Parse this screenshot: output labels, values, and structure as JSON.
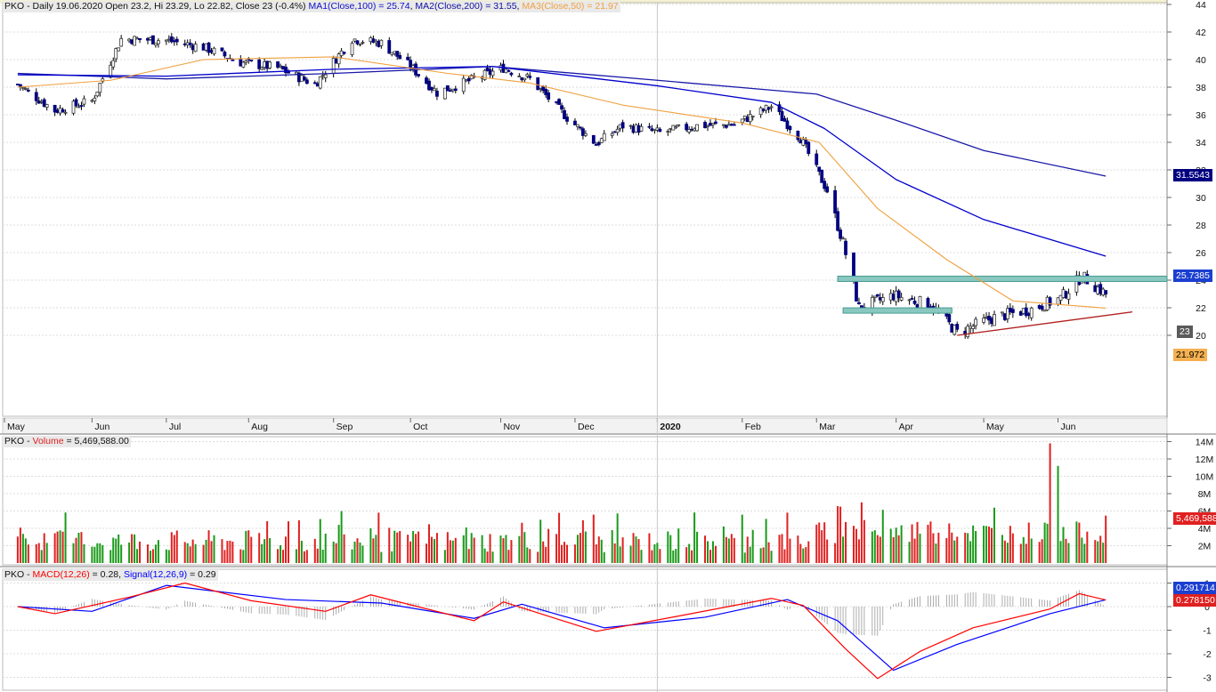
{
  "price_panel": {
    "header": {
      "symbol": "PKO",
      "info": " - Daily 19.06.2020 Open 23.2, Hi 23.29, Lo 22.82, Close 23 (-0.4%) ",
      "ma1": "MA1(Close,100) = 25.74",
      "sep1": ", ",
      "ma2": "MA2(Close,200) = 31.55",
      "sep2": ", ",
      "ma3": "MA3(Close,50) = 21.97"
    },
    "y_ticks": [
      "44",
      "42",
      "40",
      "38",
      "36",
      "34",
      "32",
      "30",
      "28",
      "26",
      "24",
      "22",
      "20"
    ],
    "labels": {
      "ma2": "31.5543",
      "ma1": "25.7385",
      "last": "23",
      "ma3": "21.972"
    }
  },
  "volume_panel": {
    "header": {
      "symbol": "PKO",
      "sep": " - ",
      "label": "Volume",
      "value": " = 5,469,588.00"
    },
    "y_ticks": [
      "14M",
      "12M",
      "10M",
      "8M",
      "6M",
      "4M",
      "2M"
    ],
    "last_label": "5,469,588"
  },
  "macd_panel": {
    "header": {
      "symbol": "PKO",
      "sep": " - ",
      "macd": "MACD(12,26)",
      "macd_val": " = 0.28, ",
      "signal": "Signal(12,26,9)",
      "signal_val": " = 0.29"
    },
    "y_ticks": [
      "1",
      "0",
      "-1",
      "-2",
      "-3"
    ],
    "labels": {
      "signal": "0.291714",
      "macd": "0.278150"
    }
  },
  "x_axis": {
    "ticks": [
      "May",
      "Jun",
      "Jul",
      "Aug",
      "Sep",
      "Oct",
      "Nov",
      "Dec",
      "2020",
      "Feb",
      "Mar",
      "Apr",
      "May",
      "Jun"
    ]
  },
  "colors": {
    "ma100": "#0000cc",
    "ma200": "#1a1aa8",
    "ma50": "#f0a040",
    "up": "#1a9a1a",
    "down": "#e02020",
    "macd": "#ff0000",
    "signal": "#0000ff",
    "support": "#88c8c0",
    "trend": "#b02020"
  },
  "chart_data": [
    {
      "type": "candlestick",
      "title": "PKO - Daily",
      "ylim": [
        19,
        44.5
      ],
      "series": [
        {
          "name": "MA1(Close,100)",
          "x": [
            "2019-05-06",
            "2019-07-01",
            "2019-09-02",
            "2019-11-01",
            "2020-01-02",
            "2020-02-14",
            "2020-03-05",
            "2020-04-01",
            "2020-05-04",
            "2020-06-19"
          ],
          "values": [
            38.9,
            38.8,
            39.3,
            39.5,
            38.1,
            36.9,
            35.0,
            31.3,
            28.4,
            25.74
          ]
        },
        {
          "name": "MA2(Close,200)",
          "x": [
            "2019-05-06",
            "2019-07-01",
            "2019-09-02",
            "2019-11-01",
            "2020-01-02",
            "2020-03-02",
            "2020-04-01",
            "2020-05-04",
            "2020-06-19"
          ],
          "values": [
            39.0,
            38.6,
            39.0,
            39.5,
            38.5,
            37.5,
            35.6,
            33.4,
            31.55
          ]
        },
        {
          "name": "MA3(Close,50)",
          "x": [
            "2019-05-06",
            "2019-06-10",
            "2019-07-15",
            "2019-09-02",
            "2019-10-15",
            "2019-11-15",
            "2019-12-20",
            "2020-02-03",
            "2020-03-03",
            "2020-03-25",
            "2020-04-20",
            "2020-05-15",
            "2020-06-19"
          ],
          "values": [
            38.0,
            38.5,
            40.0,
            40.2,
            39.0,
            38.3,
            36.7,
            35.4,
            34.0,
            29.2,
            25.5,
            22.5,
            21.97
          ]
        }
      ],
      "closes": [
        [
          "2019-05-06",
          38.2
        ],
        [
          "2019-05-20",
          36.3
        ],
        [
          "2019-06-03",
          37.0
        ],
        [
          "2019-06-14",
          41.5
        ],
        [
          "2019-07-01",
          41.4
        ],
        [
          "2019-07-15",
          40.9
        ],
        [
          "2019-07-29",
          39.8
        ],
        [
          "2019-08-12",
          39.4
        ],
        [
          "2019-08-26",
          38.2
        ],
        [
          "2019-09-09",
          41.5
        ],
        [
          "2019-09-20",
          41.2
        ],
        [
          "2019-10-01",
          39.5
        ],
        [
          "2019-10-11",
          37.6
        ],
        [
          "2019-10-25",
          38.6
        ],
        [
          "2019-11-05",
          39.4
        ],
        [
          "2019-11-15",
          38.6
        ],
        [
          "2019-11-29",
          35.8
        ],
        [
          "2019-12-10",
          33.9
        ],
        [
          "2019-12-20",
          35.2
        ],
        [
          "2020-01-03",
          34.7
        ],
        [
          "2020-01-17",
          35.2
        ],
        [
          "2020-01-31",
          35.3
        ],
        [
          "2020-02-14",
          36.6
        ],
        [
          "2020-02-25",
          34.3
        ],
        [
          "2020-03-06",
          30.5
        ],
        [
          "2020-03-12",
          26.7
        ],
        [
          "2020-03-18",
          22.0
        ],
        [
          "2020-03-31",
          22.9
        ],
        [
          "2020-04-14",
          22.2
        ],
        [
          "2020-04-24",
          20.2
        ],
        [
          "2020-05-08",
          21.3
        ],
        [
          "2020-05-22",
          21.9
        ],
        [
          "2020-06-02",
          22.7
        ],
        [
          "2020-06-10",
          24.3
        ],
        [
          "2020-06-19",
          23.0
        ]
      ],
      "hlines": [
        {
          "name": "resistance",
          "y": 24.1
        },
        {
          "name": "support",
          "y": 21.8
        }
      ]
    },
    {
      "type": "bar",
      "title": "PKO - Volume",
      "ylim": [
        0,
        15000000
      ],
      "last": 5469588,
      "notable": [
        [
          "2020-05-29",
          13800000
        ],
        [
          "2020-06-01",
          11200000
        ],
        [
          "2020-03-11",
          6500000
        ],
        [
          "2020-03-19",
          7000000
        ]
      ]
    },
    {
      "type": "line",
      "title": "PKO - MACD",
      "ylim": [
        -3.4,
        1.3
      ],
      "series": [
        {
          "name": "MACD(12,26)",
          "x": [
            "2019-05-06",
            "2019-05-20",
            "2019-06-17",
            "2019-07-08",
            "2019-08-02",
            "2019-08-30",
            "2019-09-16",
            "2019-10-25",
            "2019-11-05",
            "2019-12-10",
            "2020-01-10",
            "2020-02-14",
            "2020-02-26",
            "2020-03-13",
            "2020-03-25",
            "2020-04-10",
            "2020-04-30",
            "2020-05-29",
            "2020-06-09",
            "2020-06-19"
          ],
          "values": [
            0.0,
            -0.3,
            0.4,
            1.0,
            0.25,
            -0.2,
            0.5,
            -0.6,
            0.2,
            -1.05,
            -0.4,
            0.35,
            0.05,
            -1.8,
            -3.05,
            -1.9,
            -0.9,
            -0.1,
            0.55,
            0.28
          ]
        },
        {
          "name": "Signal(12,26,9)",
          "x": [
            "2019-05-06",
            "2019-06-03",
            "2019-07-01",
            "2019-08-15",
            "2019-09-20",
            "2019-10-25",
            "2019-11-12",
            "2019-12-13",
            "2020-01-20",
            "2020-02-20",
            "2020-03-10",
            "2020-03-31",
            "2020-04-24",
            "2020-05-29",
            "2020-06-19"
          ],
          "values": [
            0.0,
            -0.2,
            0.9,
            0.3,
            0.15,
            -0.5,
            0.1,
            -0.9,
            -0.45,
            0.3,
            -0.6,
            -2.7,
            -1.6,
            -0.3,
            0.29
          ]
        }
      ]
    }
  ]
}
